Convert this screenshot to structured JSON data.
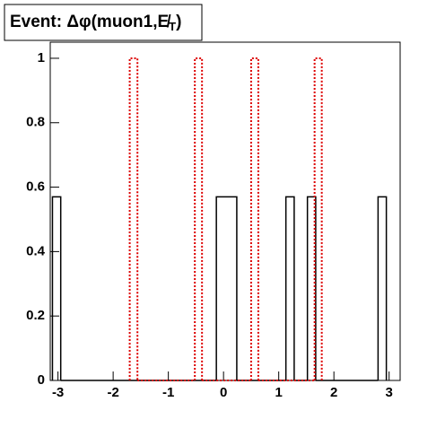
{
  "chart_data": {
    "type": "histogram",
    "title": "Event: Δφ(muon1,E̸",
    "title_subscript": "T",
    "title_suffix": ")",
    "xlim": [
      -3.14,
      3.2
    ],
    "ylim": [
      0,
      1.05
    ],
    "xticks": [
      -3,
      -2,
      -1,
      0,
      1,
      2,
      3
    ],
    "yticks": [
      0,
      0.2,
      0.4,
      0.6,
      0.8,
      1
    ],
    "series": [
      {
        "color": "#000000",
        "dash": false,
        "bins": [
          -3.1,
          -2.95,
          -0.13,
          0.24,
          1.13,
          1.28,
          1.52,
          1.67,
          2.8,
          2.95
        ],
        "values": [
          0.57,
          0,
          0.57,
          0,
          0.57,
          0,
          0.57,
          0,
          0.57
        ]
      },
      {
        "color": "#dd0000",
        "dash": true,
        "bins": [
          -1.7,
          -1.56,
          -0.52,
          -0.39,
          0.5,
          0.63,
          1.65,
          1.78
        ],
        "values": [
          1,
          0,
          1,
          0,
          1,
          0,
          1
        ]
      }
    ]
  }
}
